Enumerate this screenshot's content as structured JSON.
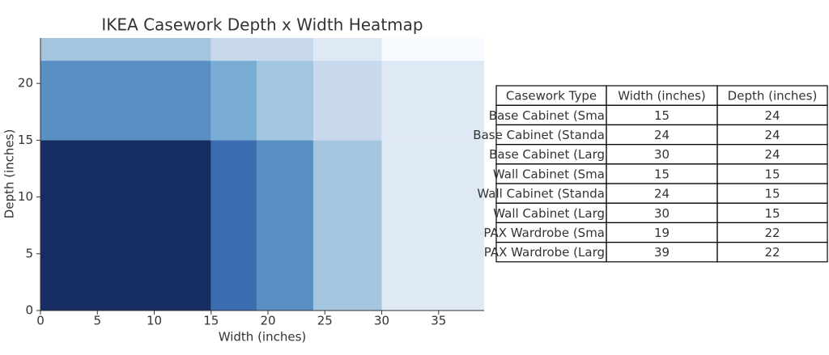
{
  "chart_data": {
    "type": "heatmap",
    "title": "IKEA Casework Depth x Width Heatmap",
    "x_label": "Width (inches)",
    "y_label": "Depth (inches)",
    "x_edges": [
      0,
      15,
      19,
      24,
      30,
      39
    ],
    "y_edges": [
      0,
      15,
      22,
      24
    ],
    "values": [
      [
        8,
        6,
        5,
        3,
        1
      ],
      [
        5,
        4,
        3,
        2,
        1
      ],
      [
        3,
        2,
        2,
        1,
        0
      ]
    ],
    "colormap": "Blues",
    "xlim": [
      0,
      39
    ],
    "ylim": [
      0,
      24
    ],
    "xticks": [
      0,
      5,
      10,
      15,
      20,
      25,
      30,
      35
    ],
    "yticks": [
      0,
      5,
      10,
      15,
      20
    ]
  },
  "table": {
    "columns": [
      "Casework Type",
      "Width (inches)",
      "Depth (inches)"
    ],
    "rows": [
      [
        "Base Cabinet (Sma",
        15,
        24
      ],
      [
        "Base Cabinet (Standa",
        24,
        24
      ],
      [
        "Base Cabinet (Larg",
        30,
        24
      ],
      [
        "Wall Cabinet (Sma",
        15,
        15
      ],
      [
        "Wall Cabinet (Standa",
        24,
        15
      ],
      [
        "Wall Cabinet (Larg",
        30,
        15
      ],
      [
        "PAX Wardrobe (Sma",
        19,
        22
      ],
      [
        "PAX Wardrobe (Larg",
        39,
        22
      ]
    ]
  }
}
